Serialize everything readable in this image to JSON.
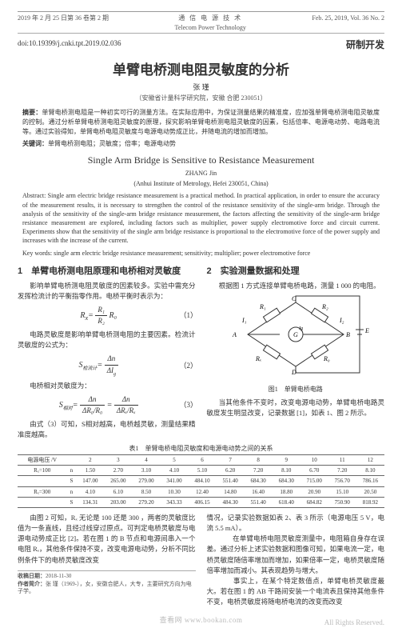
{
  "header": {
    "left": "2019 年 2 月 25 日第 36 卷第 2 期",
    "center_top": "通 信 电 源 技 术",
    "center_bottom": "Telecom Power Technology",
    "right": "Feb. 25, 2019,  Vol. 36  No. 2"
  },
  "doi": "doi:10.19399/j.cnki.tpt.2019.02.036",
  "section_tag": "研制开发",
  "title_cn": "单臂电桥测电阻灵敏度的分析",
  "author_cn": "张 瑾",
  "affil_cn": "（安徽省计量科学研究院，安徽 合肥 230051）",
  "abs_label_cn": "摘要：",
  "abstract_cn": "单臂电桥测电阻是一种初实可行的测量方法。在实际应用中，为保证测量结果的精准度，应加强单臂电桥测电阻灵敏度的控制。通过分析单臂电桥测电阻灵敏度的原理，探究影响单臂电桥测电阻灵敏度的因素，包括倍率、电源电动势、电路电流等。通过实验得知，单臂电桥电阻灵敏度与电源电动势成正比，并随电流的增加而增加。",
  "kw_label_cn": "关键词：",
  "keywords_cn": "单臂电桥测电阻；灵敏度；倍率；电源电动势",
  "title_en": "Single Arm Bridge is Sensitive to Resistance Measurement",
  "author_en": "ZHANG Jin",
  "affil_en": "(Anhui Institute of Metrology, Hefei 230051, China)",
  "abs_label_en": "Abstract:",
  "abstract_en": "Single arm electric bridge resistance measurement is a practical method. In practical application, in order to ensure the accuracy of the measurement results, it is necessary to strengthen the control of the resistance sensitivity of the single-arm bridge. Through the analysis of the sensitivity of the single-arm bridge resistance measurement, the factors affecting the sensitivity of the single-arm bridge resistance measurement are explored, including factors such as multiplier, power supply electromotive force and circuit current. Experiments show that the sensitivity of the single arm bridge resistance is proportional to the electromotive force of the power supply and increases with the increase of the current.",
  "kw_label_en": "Key words:",
  "keywords_en": "single arm electric bridge resistance measurement; sensitivity; multiplier; power electromotive force",
  "sec1_head": "1　单臂电桥测电阻原理和电桥相对灵敏度",
  "sec1_p1": "影响单臂电桥测电阻灵敏度的因素较多。实验中需充分发挥检流计的平衡指零作用。电桥平衡时表示为：",
  "sec1_p2": "电路灵敏度是影响单臂电桥测电阻的主要因素。检流计灵敏度的公式为：",
  "sec1_p3": "电桥相对灵敏度为：",
  "sec1_p4": "由式（3）可知，S相对越高，电桥越灵敏，测量结果精准度越高。",
  "eq": {
    "e1_lhs": "R",
    "e1_sub": "x",
    "e1_num": "R₁",
    "e1_den": "R₂",
    "e1_rhs": "R₀",
    "no1": "（1）",
    "e2_lhs": "S",
    "e2_sub": "检流计",
    "e2_num": "Δn",
    "e2_den": "ΔI",
    "e2_unit": "g",
    "no2": "（2）",
    "e3_lhs": "S",
    "e3_sub": "相对",
    "e3_term1_num": "Δn",
    "e3_term1_den": "ΔR₀/R₀",
    "e3_eq": "=",
    "e3_term2_num": "Δn",
    "e3_term2_den": "ΔRₓ/Rₓ",
    "no3": "（3）"
  },
  "sec2_head": "2　实验测量数据和处理",
  "sec2_p1": "根据图 1 方式连接单臂电桥电路，测量 1 000 的电阻。",
  "fig1_caption": "图1　单臂电桥电路",
  "sec2_p2": "当其他条件不变时，改变电源电动势，单臂电桥电路灵敏度发生明显改变，记录数据 [1]，如表 1、图 2 所示。",
  "table1_caption": "表1　单臂电桥电阻灵敏度和电源电动势之间的关系",
  "table1": {
    "head": [
      "电源电压 /V",
      "",
      "2",
      "3",
      "4",
      "5",
      "6",
      "7",
      "8",
      "9",
      "10",
      "11",
      "12"
    ],
    "rows": [
      [
        "Rₓ=100",
        "n",
        "1.50",
        "2.70",
        "3.10",
        "4.10",
        "5.10",
        "6.20",
        "7.20",
        "8.10",
        "6.70",
        "7.20",
        "8.10"
      ],
      [
        "",
        "S",
        "147.00",
        "265.00",
        "279.00",
        "341.00",
        "484.10",
        "551.40",
        "684.30",
        "684.30",
        "715.00",
        "756.70",
        "786.16"
      ],
      [
        "Rₓ=300",
        "n",
        "4.10",
        "6.10",
        "8.50",
        "10.30",
        "12.40",
        "14.80",
        "16.40",
        "18.80",
        "20.90",
        "15.10",
        "20.50"
      ],
      [
        "",
        "S",
        "134.31",
        "203.00",
        "279.20",
        "343.33",
        "406.15",
        "484.30",
        "551.40",
        "618.40",
        "684.82",
        "750.90",
        "818.92"
      ]
    ]
  },
  "left_p5": "由图 2 可知，Rₓ 无论是 100  还是 300  ，两者的灵敏度比值为一条直线，且经过线穿过原点。可判定电桥灵敏度与电源电动势成正比 [2]。若在图 1 的 B 节点和电源间串入一个电阻 Rₑ，其他条件保持不变，改变电源电动势，分析不同比例条件下的电桥灵敏度改变",
  "right_p3": "情况，记录实验数据如表 2、表 3 所示（电源电压 5 V，电流 5.5 mA）。",
  "right_p4": "　　在单臂电桥电阻灵敏度测量中，电阻箱自身存在误差。通过分析上述实验数据和图像可知，如果电流一定，电桥灵敏度随倍率增加而增加，如果倍率一定，电桥灵敏度随倍率增加而减小。其表现趋势与增大。",
  "right_p5": "　　事实上，在某个特定数值点，单臂电桥灵敏度最大。若在图 1 的 AB 干路间安装一个电流表且保持其他条件不变，电桥灵敏度将随电桥电流的改变而改变",
  "footnote_date_label": "收稿日期：",
  "footnote_date": "2018-11-30",
  "footnote_author_label": "作者简介：",
  "footnote_author": "张 瑾（1969-），女，安徽合肥人，大专，主要研究方向为电子学。",
  "watermark": "查看网 www.bookan.com",
  "rights": "All Rights Reserved."
}
